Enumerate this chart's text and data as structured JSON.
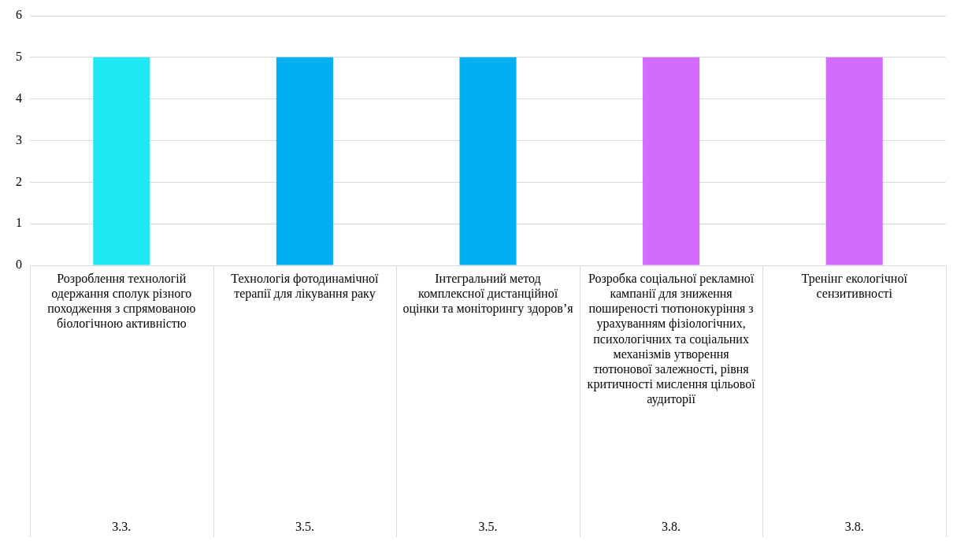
{
  "chart_data": {
    "type": "bar",
    "categories": [
      "Розроблення технологій одержання сполук різного походження з спрямованою біологічною активністю",
      "Технологія фотодинамічної терапії для лікування  раку",
      "Інтегральний метод комплексної дистанційної оцінки та моніторингу здоров’я",
      "Розробка соціальної рекламної кампанії для зниження поширеності тютюнокуріння з урахуванням фізіологічних, психологічних та соціальних механізмів утворення тютюнової залежності, рівня критичності мислення цільової аудиторії",
      "Тренінг екологічної сензитивності"
    ],
    "values": [
      5,
      5,
      5,
      5,
      5
    ],
    "colors": [
      "#1ee8f4",
      "#00b0f0",
      "#00b0f0",
      "#d46bff",
      "#d46bff"
    ],
    "annotations": [
      "3.3.",
      "3.5.",
      "3.5.",
      "3.8.",
      "3.8."
    ],
    "ylim": [
      0,
      6
    ],
    "yticks": [
      0,
      1,
      2,
      3,
      4,
      5,
      6
    ],
    "grid": "y"
  }
}
